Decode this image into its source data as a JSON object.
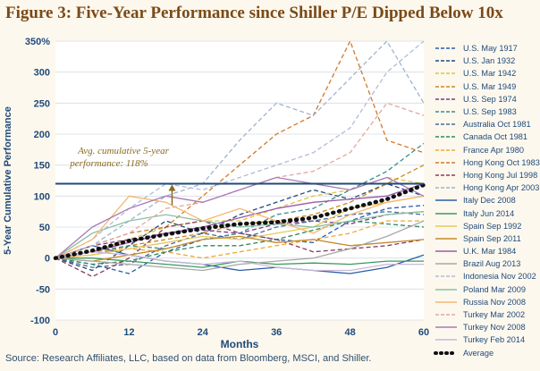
{
  "title": "Figure 3: Five-Year Performance since Shiller P/E Dipped Below 10x",
  "source": "Source: Research Affiliates, LLC, based on data from Bloomberg, MSCI, and Shiller.",
  "colors": {
    "average": "#111111",
    "reference": "#1f4a7a",
    "axis_text": "#1f4a7a",
    "annotation": "#8b6a1e",
    "background": "#fdf8ee",
    "plot_background": "#ffffff"
  },
  "chart_data": {
    "type": "line",
    "xlabel": "Months",
    "ylabel": "5-Year Cumulative Performance",
    "xlim": [
      0,
      60
    ],
    "ylim": [
      -100,
      350
    ],
    "xticks": [
      0,
      12,
      24,
      36,
      48,
      60
    ],
    "yticks": [
      -100,
      -50,
      0,
      50,
      100,
      150,
      200,
      250,
      300,
      350
    ],
    "ytick_labels": [
      "-100",
      "-50",
      "0",
      "50",
      "100",
      "150",
      "200",
      "250",
      "300",
      "350%"
    ],
    "grid": "horizontal",
    "legend_position": "right",
    "reference_line": {
      "y": 120,
      "color": "#1f4a7a"
    },
    "annotation": {
      "text_line1": "Avg. cumulative 5-year",
      "text_line2": "performance: 118%",
      "x": 19,
      "y": 120
    },
    "x": [
      0,
      6,
      12,
      18,
      24,
      30,
      36,
      42,
      48,
      54,
      60
    ],
    "series": [
      {
        "name": "U.S. May 1917",
        "color": "#2a5da8",
        "dash": "dash",
        "values": [
          0,
          -10,
          -25,
          10,
          30,
          40,
          30,
          25,
          60,
          80,
          85
        ]
      },
      {
        "name": "U.S. Jan 1932",
        "color": "#1f4a7a",
        "dash": "dash",
        "values": [
          0,
          -20,
          20,
          60,
          40,
          70,
          90,
          110,
          95,
          120,
          100
        ]
      },
      {
        "name": "U.S. Mar 1942",
        "color": "#e2c33a",
        "dash": "dash",
        "values": [
          0,
          10,
          30,
          50,
          60,
          60,
          80,
          100,
          110,
          130,
          120
        ]
      },
      {
        "name": "U.S. Mar 1949",
        "color": "#c98a1a",
        "dash": "dash",
        "values": [
          0,
          5,
          20,
          30,
          40,
          55,
          60,
          70,
          90,
          120,
          150
        ]
      },
      {
        "name": "U.S. Sep 1974",
        "color": "#7a3a8a",
        "dash": "dash",
        "values": [
          0,
          20,
          30,
          40,
          45,
          40,
          55,
          60,
          55,
          70,
          75
        ]
      },
      {
        "name": "U.S. Sep 1983",
        "color": "#3b8c8c",
        "dash": "dash",
        "values": [
          0,
          10,
          20,
          15,
          30,
          40,
          70,
          80,
          110,
          140,
          185
        ]
      },
      {
        "name": "Australia Oct 1981",
        "color": "#4a6a9a",
        "dash": "dash",
        "values": [
          0,
          -15,
          -10,
          20,
          40,
          30,
          50,
          60,
          70,
          75,
          70
        ]
      },
      {
        "name": "Canada Oct 1981",
        "color": "#2c8a5a",
        "dash": "dash",
        "values": [
          0,
          -10,
          -5,
          10,
          20,
          20,
          30,
          45,
          60,
          55,
          50
        ]
      },
      {
        "name": "France Apr 1980",
        "color": "#f0a830",
        "dash": "dash",
        "values": [
          0,
          10,
          15,
          10,
          0,
          10,
          20,
          30,
          40,
          60,
          60
        ]
      },
      {
        "name": "Hong Kong Oct 1983",
        "color": "#d07a28",
        "dash": "dash",
        "values": [
          0,
          20,
          40,
          50,
          100,
          150,
          200,
          230,
          350,
          190,
          170
        ]
      },
      {
        "name": "Hong Kong Jul 1998",
        "color": "#8a3a5a",
        "dash": "dash",
        "values": [
          0,
          -30,
          0,
          50,
          60,
          40,
          30,
          10,
          15,
          20,
          30
        ]
      },
      {
        "name": "Hong Kong Apr 2003",
        "color": "#9fb3d0",
        "dash": "dash",
        "values": [
          0,
          20,
          60,
          100,
          120,
          190,
          250,
          230,
          290,
          350,
          250
        ]
      },
      {
        "name": "Italy Dec 2008",
        "color": "#2a5da8",
        "dash": "solid",
        "values": [
          0,
          20,
          5,
          -5,
          -10,
          -20,
          -15,
          -20,
          -25,
          -15,
          5
        ]
      },
      {
        "name": "Italy Jun 2014",
        "color": "#3a9a5a",
        "dash": "solid",
        "values": [
          0,
          0,
          -5,
          -10,
          -15,
          -5,
          -10,
          -8,
          -10,
          -5,
          -5
        ]
      },
      {
        "name": "Spain Sep 1992",
        "color": "#e8c85a",
        "dash": "solid",
        "values": [
          0,
          5,
          15,
          25,
          35,
          30,
          40,
          50,
          80,
          90,
          100
        ]
      },
      {
        "name": "Spain Sep 2011",
        "color": "#c48a2a",
        "dash": "solid",
        "values": [
          0,
          -5,
          5,
          15,
          30,
          35,
          25,
          30,
          20,
          25,
          30
        ]
      },
      {
        "name": "U.K. Mar 1984",
        "color": "#9a5aa8",
        "dash": "solid",
        "values": [
          0,
          10,
          25,
          40,
          50,
          65,
          80,
          90,
          95,
          100,
          120
        ]
      },
      {
        "name": "Brazil Aug 2013",
        "color": "#a8a8a8",
        "dash": "solid",
        "values": [
          0,
          -5,
          -10,
          -15,
          -20,
          -10,
          -5,
          0,
          15,
          35,
          60
        ]
      },
      {
        "name": "Indonesia Nov 2002",
        "color": "#b0bcd8",
        "dash": "dash",
        "values": [
          0,
          30,
          80,
          120,
          110,
          130,
          150,
          170,
          210,
          300,
          350
        ]
      },
      {
        "name": "Poland Mar 2009",
        "color": "#8ac0a0",
        "dash": "solid",
        "values": [
          0,
          40,
          60,
          70,
          60,
          50,
          55,
          50,
          60,
          70,
          75
        ]
      },
      {
        "name": "Russia Nov 2008",
        "color": "#f5b870",
        "dash": "solid",
        "values": [
          0,
          30,
          100,
          90,
          60,
          80,
          60,
          40,
          70,
          90,
          100
        ]
      },
      {
        "name": "Turkey Mar 2002",
        "color": "#e0a8a0",
        "dash": "dash",
        "values": [
          0,
          20,
          40,
          80,
          90,
          110,
          130,
          140,
          170,
          250,
          230
        ]
      },
      {
        "name": "Turkey Nov 2008",
        "color": "#a87ab8",
        "dash": "solid",
        "values": [
          0,
          50,
          80,
          100,
          90,
          110,
          130,
          120,
          110,
          130,
          100
        ]
      },
      {
        "name": "Turkey Feb 2014",
        "color": "#c8b8d8",
        "dash": "solid",
        "values": [
          0,
          10,
          5,
          -5,
          -10,
          -5,
          -15,
          -20,
          -20,
          -10,
          -10
        ]
      },
      {
        "name": "Average",
        "color": "#111111",
        "dash": "dot",
        "values": [
          0,
          12,
          28,
          38,
          48,
          55,
          58,
          65,
          80,
          95,
          118
        ]
      }
    ]
  }
}
